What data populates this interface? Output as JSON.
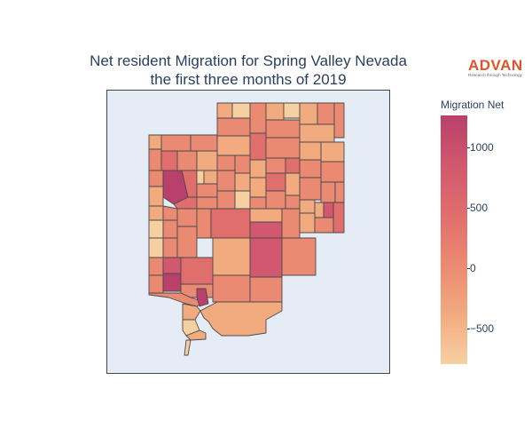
{
  "title": {
    "line1": "Net resident Migration for Spring Valley Nevada",
    "line2": "the first three months of 2019"
  },
  "logo": {
    "word": "ADVAN",
    "tagline": "Research through Technology",
    "color": "#e0532c"
  },
  "legend": {
    "title": "Migration Net",
    "ticks": [
      "1000",
      "500",
      "0",
      "−500"
    ],
    "range": [
      -780,
      1250
    ],
    "colorscale": [
      "#f7d0a2",
      "#f2aa7f",
      "#eb8a72",
      "#e06e6d",
      "#d1586e",
      "#b9406b"
    ]
  },
  "map": {
    "background": "#e5ecf6",
    "border_color": "#444444"
  }
}
